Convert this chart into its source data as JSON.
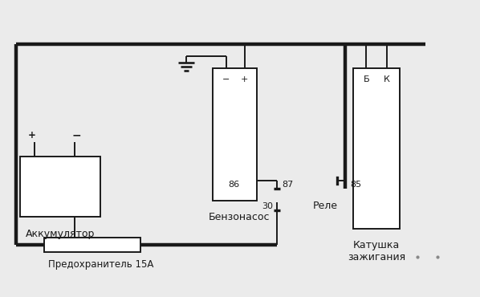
{
  "bg_color": "#ebebeb",
  "line_color": "#1a1a1a",
  "thick_lw": 3.2,
  "thin_lw": 1.4,
  "battery_label": "Аккумулятор",
  "pump_label": "Бензонасос",
  "coil_label": "Катушка\nзажигания",
  "fuse_label": "Предохранитель 15А",
  "relay_label": "Реле",
  "note_color": "#888888"
}
